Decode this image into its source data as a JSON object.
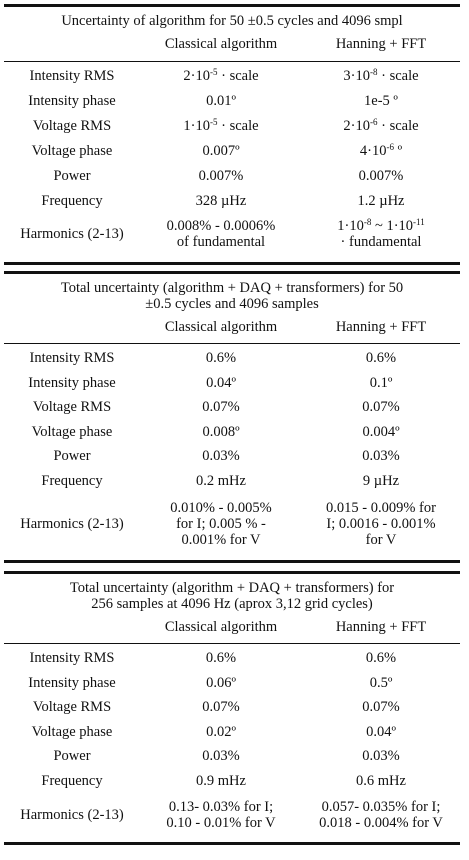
{
  "tables": [
    {
      "title_lines": [
        "Uncertainty of algorithm for 50 ±0.5 cycles and 4096 smpl"
      ],
      "col_headers": [
        "Classical algorithm",
        "Hanning + FFT"
      ],
      "rows": [
        {
          "label": "Intensity RMS",
          "classical": [
            "2·10",
            "-5",
            " · scale"
          ],
          "hanning": [
            "3·10",
            "-8",
            " · scale"
          ]
        },
        {
          "label": "Intensity phase",
          "classical_text": "0.01º",
          "hanning_text": "1e-5 º"
        },
        {
          "label": "Voltage RMS",
          "classical": [
            "1·10",
            "-5",
            " · scale"
          ],
          "hanning": [
            "2·10",
            "-6",
            " · scale"
          ]
        },
        {
          "label": "Voltage phase",
          "classical_text": "0.007º",
          "hanning": [
            "4·10",
            "-6",
            " º"
          ]
        },
        {
          "label": "Power",
          "classical_text": "0.007%",
          "hanning_text": "0.007%"
        },
        {
          "label": "Frequency",
          "classical_text": "328 µHz",
          "hanning_text": "1.2 µHz"
        },
        {
          "label": "Harmonics (2-13)",
          "classical_lines": [
            "0.008% - 0.0006%",
            "of fundamental"
          ],
          "hanning_sup_line": [
            "1·10",
            "-8",
            " ~ 1·10",
            "-11"
          ],
          "hanning_line2": "· fundamental"
        }
      ]
    },
    {
      "title_lines": [
        "Total uncertainty (algorithm + DAQ + transformers) for 50",
        "±0.5 cycles and 4096 samples"
      ],
      "col_headers": [
        "Classical algorithm",
        "Hanning + FFT"
      ],
      "rows": [
        {
          "label": "Intensity RMS",
          "classical_text": "0.6%",
          "hanning_text": "0.6%"
        },
        {
          "label": "Intensity phase",
          "classical_text": "0.04º",
          "hanning_text": "0.1º"
        },
        {
          "label": "Voltage RMS",
          "classical_text": "0.07%",
          "hanning_text": "0.07%"
        },
        {
          "label": "Voltage phase",
          "classical_text": "0.008º",
          "hanning_text": "0.004º"
        },
        {
          "label": "Power",
          "classical_text": "0.03%",
          "hanning_text": "0.03%"
        },
        {
          "label": "Frequency",
          "classical_text": "0.2 mHz",
          "hanning_text": "9 µHz"
        },
        {
          "label": "Harmonics (2-13)",
          "classical_lines": [
            "0.010% - 0.005%",
            "for I; 0.005 % -",
            "0.001% for V"
          ],
          "hanning_lines": [
            "0.015 - 0.009% for",
            "I; 0.0016 - 0.001%",
            "for V"
          ]
        }
      ]
    },
    {
      "title_lines": [
        "Total uncertainty (algorithm + DAQ + transformers) for",
        "256 samples at 4096 Hz (aprox 3,12 grid cycles)"
      ],
      "col_headers": [
        "Classical algorithm",
        "Hanning + FFT"
      ],
      "rows": [
        {
          "label": "Intensity RMS",
          "classical_text": "0.6%",
          "hanning_text": "0.6%"
        },
        {
          "label": "Intensity phase",
          "classical_text": "0.06º",
          "hanning_text": "0.5º"
        },
        {
          "label": "Voltage RMS",
          "classical_text": "0.07%",
          "hanning_text": "0.07%"
        },
        {
          "label": "Voltage phase",
          "classical_text": "0.02º",
          "hanning_text": "0.04º"
        },
        {
          "label": "Power",
          "classical_text": "0.03%",
          "hanning_text": "0.03%"
        },
        {
          "label": "Frequency",
          "classical_text": "0.9 mHz",
          "hanning_text": "0.6 mHz"
        },
        {
          "label": "Harmonics (2-13)",
          "classical_lines": [
            "0.13- 0.03% for I;",
            "0.10 - 0.01% for V"
          ],
          "hanning_lines": [
            "0.057- 0.035% for I;",
            "0.018 - 0.004% for V"
          ]
        }
      ]
    }
  ]
}
